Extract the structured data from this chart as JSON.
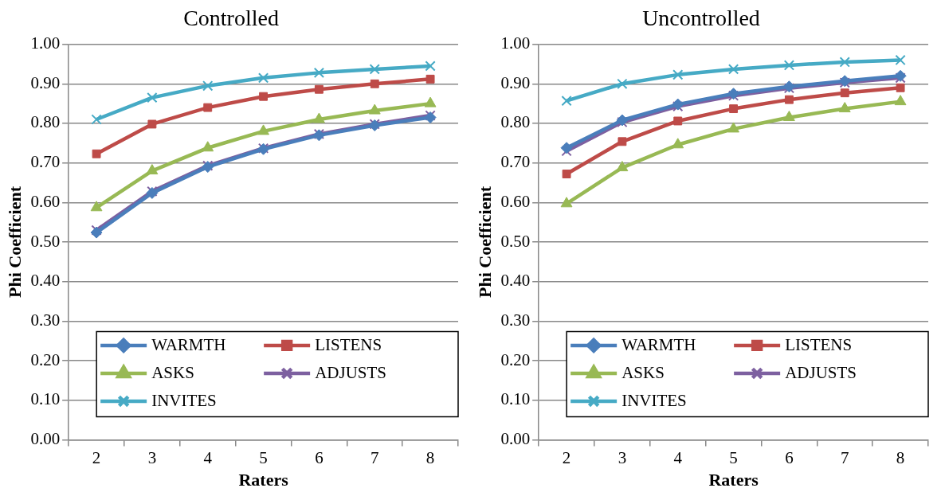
{
  "chart_data": [
    {
      "type": "line",
      "title": "Controlled",
      "xlabel": "Raters",
      "ylabel": "Phi Coefficient",
      "categories": [
        "2",
        "3",
        "4",
        "5",
        "6",
        "7",
        "8"
      ],
      "ylim": [
        0,
        1
      ],
      "yticks": [
        {
          "value": 0,
          "label": "0.00"
        },
        {
          "value": 0.1,
          "label": "0.10"
        },
        {
          "value": 0.2,
          "label": "0.20"
        },
        {
          "value": 0.3,
          "label": "0.30"
        },
        {
          "value": 0.4,
          "label": "0.40"
        },
        {
          "value": 0.5,
          "label": "0.50"
        },
        {
          "value": 0.6,
          "label": "0.60"
        },
        {
          "value": 0.7,
          "label": "0.70"
        },
        {
          "value": 0.8,
          "label": "0.80"
        },
        {
          "value": 0.9,
          "label": "0.90"
        },
        {
          "value": 1,
          "label": "1.00"
        }
      ],
      "grid": "y",
      "legend": "bottom",
      "line_style": "solid",
      "series": [
        {
          "name": "WARMTH",
          "color": "#4a7ebb",
          "marker": "diamond",
          "values": [
            0.524,
            0.624,
            0.69,
            0.735,
            0.77,
            0.795,
            0.815
          ]
        },
        {
          "name": "LISTENS",
          "color": "#be4b48",
          "marker": "square",
          "values": [
            0.723,
            0.798,
            0.84,
            0.868,
            0.886,
            0.9,
            0.912
          ]
        },
        {
          "name": "ASKS",
          "color": "#98b954",
          "marker": "triangle",
          "values": [
            0.587,
            0.68,
            0.738,
            0.78,
            0.81,
            0.832,
            0.85
          ]
        },
        {
          "name": "ADJUSTS",
          "color": "#7d60a0",
          "marker": "cross",
          "values": [
            0.53,
            0.628,
            0.693,
            0.737,
            0.773,
            0.798,
            0.82
          ]
        },
        {
          "name": "INVITES",
          "color": "#46aac5",
          "marker": "cross",
          "values": [
            0.81,
            0.865,
            0.895,
            0.915,
            0.928,
            0.937,
            0.945
          ]
        }
      ]
    },
    {
      "type": "line",
      "title": "Uncontrolled",
      "xlabel": "Raters",
      "ylabel": "Phi Coefficient",
      "categories": [
        "2",
        "3",
        "4",
        "5",
        "6",
        "7",
        "8"
      ],
      "ylim": [
        0,
        1
      ],
      "yticks": [
        {
          "value": 0,
          "label": "0.00"
        },
        {
          "value": 0.1,
          "label": "0.10"
        },
        {
          "value": 0.2,
          "label": "0.20"
        },
        {
          "value": 0.3,
          "label": "0.30"
        },
        {
          "value": 0.4,
          "label": "0.40"
        },
        {
          "value": 0.5,
          "label": "0.50"
        },
        {
          "value": 0.6,
          "label": "0.60"
        },
        {
          "value": 0.7,
          "label": "0.70"
        },
        {
          "value": 0.8,
          "label": "0.80"
        },
        {
          "value": 0.9,
          "label": "0.90"
        },
        {
          "value": 1,
          "label": "1.00"
        }
      ],
      "grid": "y",
      "legend": "bottom",
      "line_style": "solid",
      "series": [
        {
          "name": "WARMTH",
          "color": "#4a7ebb",
          "marker": "diamond",
          "values": [
            0.738,
            0.808,
            0.848,
            0.875,
            0.893,
            0.907,
            0.92
          ]
        },
        {
          "name": "LISTENS",
          "color": "#be4b48",
          "marker": "square",
          "values": [
            0.672,
            0.754,
            0.806,
            0.837,
            0.86,
            0.877,
            0.89
          ]
        },
        {
          "name": "ASKS",
          "color": "#98b954",
          "marker": "triangle",
          "values": [
            0.597,
            0.688,
            0.746,
            0.786,
            0.815,
            0.837,
            0.855
          ]
        },
        {
          "name": "ADJUSTS",
          "color": "#7d60a0",
          "marker": "cross",
          "values": [
            0.73,
            0.803,
            0.843,
            0.87,
            0.889,
            0.903,
            0.915
          ]
        },
        {
          "name": "INVITES",
          "color": "#46aac5",
          "marker": "cross",
          "values": [
            0.857,
            0.9,
            0.923,
            0.937,
            0.947,
            0.955,
            0.96
          ]
        }
      ]
    }
  ]
}
